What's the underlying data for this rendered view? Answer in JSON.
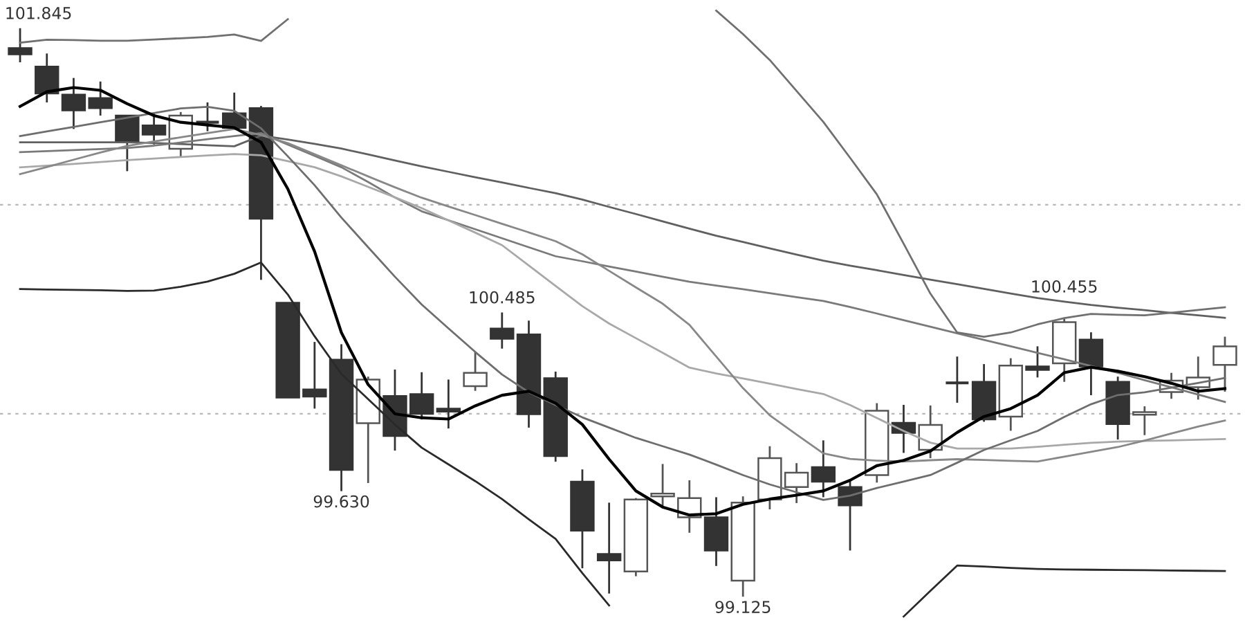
{
  "chart_data": {
    "type": "candlestick",
    "categories": [
      null,
      null,
      null,
      null,
      null,
      null,
      null,
      null,
      null,
      null,
      null,
      null,
      null,
      null,
      null,
      null,
      null,
      null,
      null,
      null,
      null,
      null,
      null,
      null,
      null,
      null,
      null,
      null,
      null,
      null,
      null,
      null,
      null,
      null,
      null,
      null,
      null,
      null,
      null,
      null,
      null,
      null,
      null,
      null,
      null,
      null
    ],
    "ohlc": [
      [
        101.75,
        101.845,
        101.682,
        101.72
      ],
      [
        101.661,
        101.724,
        101.49,
        101.533
      ],
      [
        101.527,
        101.607,
        101.363,
        101.452
      ],
      [
        101.511,
        101.59,
        101.427,
        101.463
      ],
      [
        101.427,
        101.427,
        101.161,
        101.299
      ],
      [
        101.38,
        101.438,
        101.289,
        101.336
      ],
      [
        101.268,
        101.444,
        101.231,
        101.427
      ],
      [
        101.395,
        101.49,
        101.352,
        101.395
      ],
      [
        101.438,
        101.537,
        101.363,
        101.368
      ],
      [
        101.463,
        101.473,
        100.641,
        100.934
      ],
      [
        100.531,
        100.531,
        100.078,
        100.078
      ],
      [
        100.117,
        100.344,
        100.025,
        100.083
      ],
      [
        100.259,
        100.333,
        99.63,
        99.732
      ],
      [
        99.955,
        100.178,
        99.669,
        100.164
      ],
      [
        100.085,
        100.212,
        99.824,
        99.894
      ],
      [
        100.094,
        100.199,
        99.973,
        100.0
      ],
      [
        100.025,
        100.164,
        99.93,
        100.011
      ],
      [
        100.132,
        100.297,
        100.11,
        100.196
      ],
      [
        100.408,
        100.485,
        100.312,
        100.359
      ],
      [
        100.38,
        100.446,
        99.934,
        99.998
      ],
      [
        100.17,
        100.202,
        99.771,
        99.798
      ],
      [
        99.675,
        99.734,
        99.261,
        99.441
      ],
      [
        99.329,
        99.575,
        99.14,
        99.299
      ],
      [
        99.246,
        99.597,
        99.223,
        99.59
      ],
      [
        99.605,
        99.76,
        99.548,
        99.618
      ],
      [
        99.505,
        99.682,
        99.431,
        99.597
      ],
      [
        99.505,
        99.601,
        99.272,
        99.346
      ],
      [
        99.202,
        99.605,
        99.125,
        99.575
      ],
      [
        99.59,
        99.845,
        99.543,
        99.788
      ],
      [
        99.65,
        99.764,
        99.573,
        99.718
      ],
      [
        99.745,
        99.873,
        99.601,
        99.675
      ],
      [
        99.65,
        99.682,
        99.346,
        99.562
      ],
      [
        99.707,
        100.051,
        99.671,
        100.015
      ],
      [
        99.957,
        100.043,
        99.813,
        99.909
      ],
      [
        99.828,
        100.04,
        99.788,
        99.947
      ],
      [
        100.148,
        100.274,
        100.053,
        100.148
      ],
      [
        100.153,
        100.238,
        99.962,
        99.973
      ],
      [
        99.987,
        100.266,
        99.919,
        100.231
      ],
      [
        100.227,
        100.323,
        100.174,
        100.21
      ],
      [
        100.242,
        100.455,
        100.153,
        100.439
      ],
      [
        100.355,
        100.39,
        100.089,
        100.227
      ],
      [
        100.153,
        100.178,
        99.877,
        99.951
      ],
      [
        99.996,
        100.036,
        99.898,
        100.008
      ],
      [
        100.104,
        100.196,
        100.072,
        100.159
      ],
      [
        100.127,
        100.274,
        100.068,
        100.174
      ],
      [
        100.234,
        100.369,
        100.106,
        100.323
      ]
    ],
    "colors": [
      "#333333",
      "#333333",
      "#333333",
      "#333333",
      "#333333",
      "#333333",
      "#ffffff",
      "#333333",
      "#333333",
      "#333333",
      "#333333",
      "#333333",
      "#333333",
      "#ffffff",
      "#333333",
      "#333333",
      "#333333",
      "#ffffff",
      "#333333",
      "#333333",
      "#333333",
      "#333333",
      "#333333",
      "#ffffff",
      "#ffffff",
      "#ffffff",
      "#333333",
      "#ffffff",
      "#ffffff",
      "#ffffff",
      "#333333",
      "#333333",
      "#ffffff",
      "#333333",
      "#ffffff",
      "#333333",
      "#333333",
      "#ffffff",
      "#333333",
      "#ffffff",
      "#333333",
      "#333333",
      "#ffffff",
      "#ffffff",
      "#ffffff",
      "#ffffff"
    ],
    "value_labels": [
      "101.845",
      null,
      null,
      null,
      null,
      null,
      null,
      null,
      null,
      null,
      null,
      null,
      "99.630",
      null,
      null,
      null,
      null,
      null,
      "100.485",
      null,
      null,
      null,
      null,
      null,
      null,
      null,
      null,
      "99.125",
      null,
      null,
      null,
      null,
      null,
      null,
      null,
      null,
      null,
      null,
      null,
      "100.455",
      null,
      null,
      null,
      null,
      null,
      null
    ],
    "series": [
      {
        "type": "line",
        "color": "#606060",
        "values": [
          101.299,
          101.299,
          101.299,
          101.299,
          101.299,
          101.296,
          101.291,
          101.285,
          101.28,
          101.331,
          101.312,
          101.292,
          101.269,
          101.241,
          101.212,
          101.184,
          101.158,
          101.132,
          101.107,
          101.081,
          101.056,
          101.025,
          100.99,
          100.956,
          100.921,
          100.886,
          100.852,
          100.822,
          100.792,
          100.762,
          100.733,
          100.709,
          100.687,
          100.664,
          100.642,
          100.62,
          100.598,
          100.576,
          100.554,
          100.537,
          100.521,
          100.508,
          100.496,
          100.483,
          100.471,
          100.459
        ]
      },
      {
        "type": "line",
        "color": "#7a7a7a",
        "values": [
          101.252,
          101.257,
          101.262,
          101.267,
          101.272,
          101.283,
          101.298,
          101.314,
          101.329,
          101.343,
          101.288,
          101.234,
          101.18,
          101.109,
          101.035,
          100.969,
          100.926,
          100.883,
          100.84,
          100.797,
          100.754,
          100.73,
          100.705,
          100.681,
          100.656,
          100.632,
          100.614,
          100.596,
          100.577,
          100.558,
          100.54,
          100.511,
          100.48,
          100.448,
          100.417,
          100.385,
          100.354,
          100.323,
          100.292,
          100.261,
          100.229,
          100.196,
          100.161,
          100.127,
          100.092,
          100.057
        ]
      },
      {
        "type": "line",
        "color": "#a8a8a8",
        "values": [
          101.179,
          101.187,
          101.196,
          101.205,
          101.214,
          101.221,
          101.229,
          101.236,
          101.243,
          101.237,
          101.209,
          101.18,
          101.136,
          101.086,
          101.036,
          100.984,
          100.925,
          100.867,
          100.807,
          100.71,
          100.612,
          100.515,
          100.432,
          100.362,
          100.292,
          100.221,
          100.193,
          100.169,
          100.144,
          100.119,
          100.095,
          100.042,
          99.98,
          99.918,
          99.862,
          99.834,
          99.834,
          99.834,
          99.842,
          99.852,
          99.861,
          99.867,
          99.87,
          99.873,
          99.876,
          99.879
        ]
      },
      {
        "type": "line",
        "color": "#888888",
        "values": [
          101.147,
          101.181,
          101.216,
          101.25,
          101.282,
          101.303,
          101.323,
          101.343,
          101.363,
          101.334,
          101.295,
          101.242,
          101.189,
          101.136,
          101.084,
          101.034,
          100.992,
          100.951,
          100.909,
          100.868,
          100.826,
          100.763,
          100.684,
          100.605,
          100.527,
          100.426,
          100.274,
          100.123,
          99.993,
          99.901,
          99.811,
          99.784,
          99.776,
          99.772,
          99.778,
          99.783,
          99.779,
          99.775,
          99.772,
          99.795,
          99.818,
          99.841,
          99.872,
          99.906,
          99.939,
          99.968
        ]
      },
      {
        "type": "line",
        "color": "#6e6e6e",
        "values": [
          101.329,
          101.351,
          101.373,
          101.395,
          101.417,
          101.439,
          101.461,
          101.469,
          101.45,
          101.366,
          101.232,
          101.094,
          100.939,
          100.797,
          100.656,
          100.523,
          100.409,
          100.296,
          100.188,
          100.103,
          100.042,
          99.983,
          99.934,
          99.885,
          99.845,
          99.805,
          99.757,
          99.707,
          99.662,
          99.625,
          99.588,
          99.609,
          99.645,
          99.676,
          99.707,
          99.766,
          99.827,
          99.873,
          99.918,
          99.985,
          100.046,
          100.09,
          100.103,
          100.125,
          100.148,
          100.172
        ]
      },
      {
        "type": "line",
        "color": "#707070",
        "values": [
          101.776,
          101.79,
          101.788,
          101.785,
          101.785,
          101.791,
          101.797,
          101.803,
          101.815,
          101.784,
          101.888,
          null,
          null,
          null,
          null,
          null,
          null,
          null,
          null,
          null,
          null,
          null,
          null,
          null,
          null,
          null,
          101.929,
          101.817,
          101.693,
          101.545,
          101.397,
          101.225,
          101.05,
          100.814,
          100.575,
          100.389,
          100.369,
          100.389,
          100.428,
          100.458,
          100.478,
          100.474,
          100.471,
          100.484,
          100.497,
          100.51
        ]
      },
      {
        "type": "line",
        "color": "#2a2a2a",
        "values": [
          100.597,
          100.595,
          100.593,
          100.591,
          100.588,
          100.59,
          100.608,
          100.633,
          100.67,
          100.724,
          100.571,
          100.371,
          100.191,
          100.07,
          99.949,
          99.838,
          99.758,
          99.678,
          99.592,
          99.495,
          99.402,
          99.238,
          99.083,
          null,
          null,
          null,
          null,
          null,
          null,
          null,
          null,
          null,
          null,
          99.03,
          99.153,
          99.274,
          99.269,
          99.263,
          99.258,
          99.255,
          99.254,
          99.253,
          99.252,
          99.25,
          99.249,
          99.248
        ]
      },
      {
        "type": "line",
        "color": "#000000",
        "values": [
          101.471,
          101.541,
          101.561,
          101.548,
          101.484,
          101.427,
          101.395,
          101.382,
          101.369,
          101.299,
          101.076,
          100.777,
          100.389,
          100.14,
          100.0,
          99.981,
          99.975,
          100.038,
          100.089,
          100.108,
          100.051,
          99.949,
          99.783,
          99.631,
          99.554,
          99.516,
          99.522,
          99.567,
          99.592,
          99.611,
          99.631,
          99.682,
          99.752,
          99.777,
          99.822,
          99.911,
          99.987,
          100.025,
          100.089,
          100.197,
          100.223,
          100.204,
          100.178,
          100.146,
          100.108,
          100.121
        ]
      }
    ],
    "ylim": [
      98.98,
      101.98
    ],
    "yticks": [
      {
        "value": 100,
        "label": null
      },
      {
        "value": 101,
        "label": null
      }
    ],
    "grid": "y"
  }
}
